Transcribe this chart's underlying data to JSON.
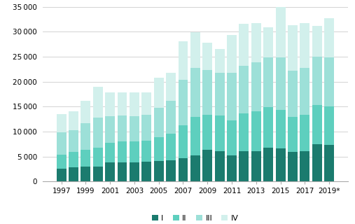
{
  "years": [
    1997,
    1998,
    1999,
    2000,
    2001,
    2002,
    2003,
    2004,
    2005,
    2006,
    2007,
    2008,
    2009,
    2010,
    2011,
    2012,
    2013,
    2014,
    2015,
    2016,
    2017,
    2018,
    2019
  ],
  "Q1": [
    2500,
    2800,
    3000,
    3000,
    3800,
    3800,
    3800,
    4000,
    4100,
    4300,
    4600,
    5200,
    6300,
    6000,
    5200,
    6000,
    6100,
    6800,
    6600,
    5900,
    6100,
    7500,
    7300
  ],
  "Q2": [
    2800,
    3100,
    3400,
    3800,
    4000,
    4200,
    4200,
    4200,
    4700,
    5200,
    6600,
    7700,
    7000,
    7200,
    7000,
    7600,
    8000,
    8100,
    7800,
    7000,
    7200,
    7800,
    7700
  ],
  "Q3": [
    4500,
    4300,
    5200,
    6000,
    5300,
    5200,
    5100,
    5200,
    6000,
    6700,
    9200,
    9800,
    9000,
    8500,
    9500,
    9600,
    9700,
    9900,
    10400,
    9300,
    9500,
    9700,
    9800
  ],
  "Q4": [
    3700,
    3800,
    4600,
    6200,
    4800,
    4600,
    4700,
    4500,
    6000,
    5500,
    7700,
    7200,
    5500,
    4900,
    7600,
    8400,
    7900,
    6100,
    10700,
    9100,
    8900,
    6200,
    7900
  ],
  "colors": [
    "#1b7b6e",
    "#5ecfbe",
    "#9de0d8",
    "#d2f0ec"
  ],
  "legend_labels": [
    "I",
    "II",
    "III",
    "IV"
  ],
  "ylim": [
    0,
    35000
  ],
  "yticks": [
    0,
    5000,
    10000,
    15000,
    20000,
    25000,
    30000,
    35000
  ],
  "bar_width": 0.8
}
